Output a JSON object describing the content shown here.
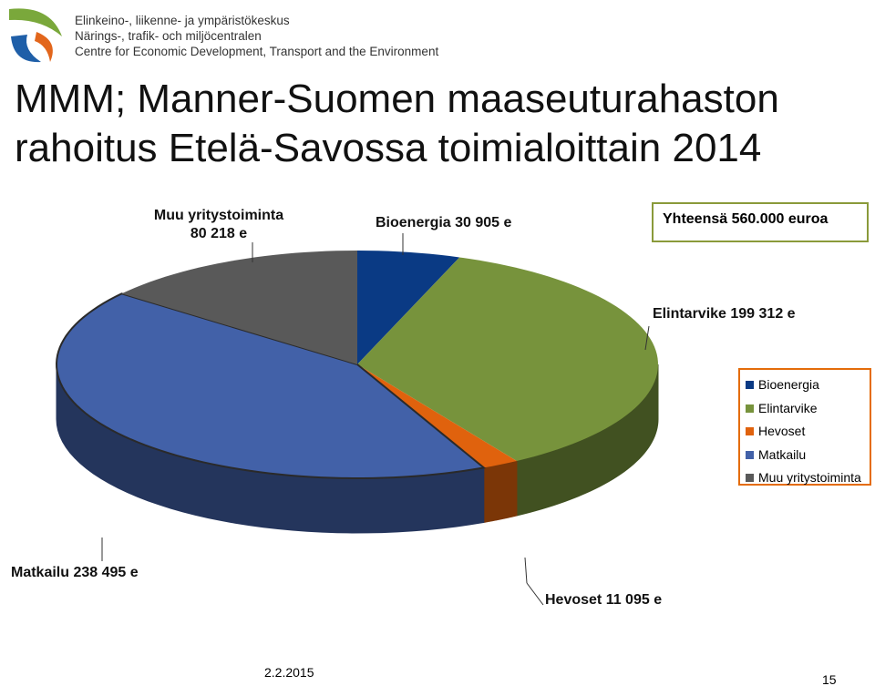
{
  "header": {
    "lines": [
      "Elinkeino-, liikenne- ja ympäristökeskus",
      "Närings-, trafik- och miljöcentralen",
      "Centre for Economic Development, Transport and the Environment"
    ]
  },
  "chart_data": {
    "type": "pie",
    "title": "MMM; Manner-Suomen maaseuturahaston rahoitus Etelä-Savossa toimialoittain 2014",
    "annotation": "Yhteensä 560.000 euroa",
    "categories": [
      "Bioenergia",
      "Elintarvike",
      "Hevoset",
      "Matkailu",
      "Muu yritystoiminta"
    ],
    "values": [
      30905,
      199312,
      11095,
      238495,
      80218
    ],
    "value_labels": [
      "Bioenergia 30 905 e",
      "Elintarvike 199 312 e",
      "Hevoset 11 095 e",
      "Matkailu 238 495 e",
      "Muu yritystoiminta 80 218 e"
    ],
    "colors": [
      "#0a3a84",
      "#77933c",
      "#e0620d",
      "#4261a8",
      "#595959"
    ],
    "legend": "right"
  },
  "footer": {
    "date": "2.2.2015",
    "page": "15"
  }
}
